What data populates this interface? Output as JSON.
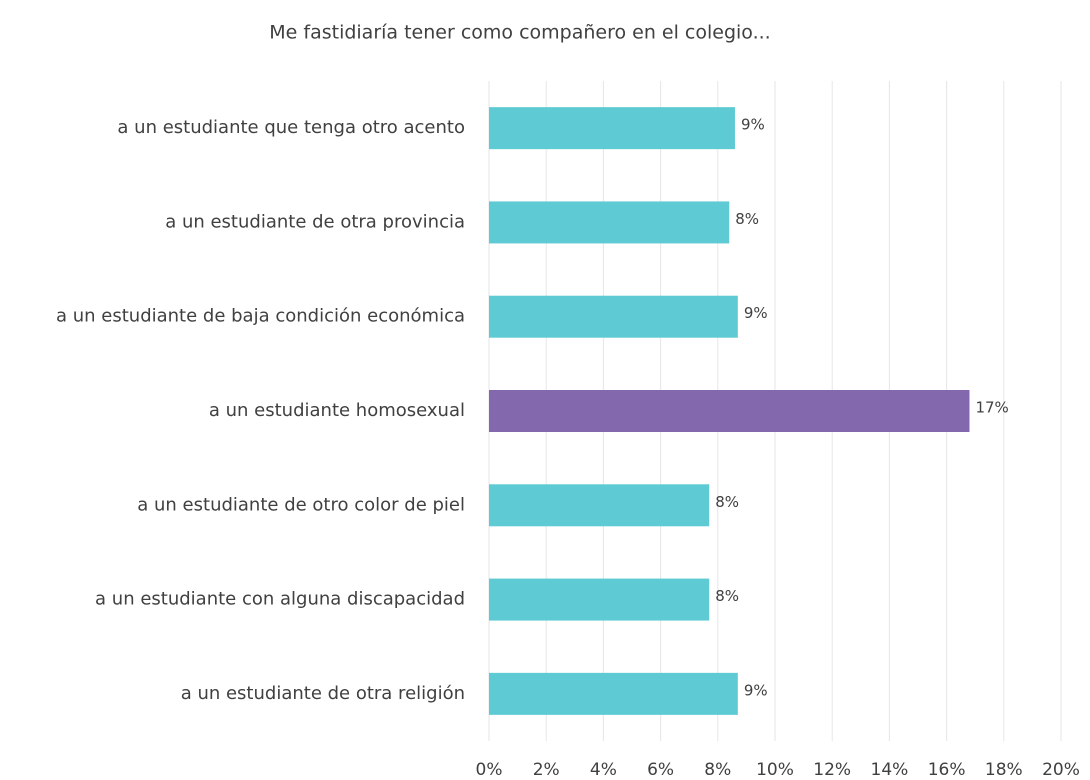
{
  "chart_data": {
    "type": "hbar",
    "title": "Me  fastidiaría tener como compañero en el colegio...",
    "categories": [
      "a un estudiante que tenga otro acento",
      "a un estudiante de otra provincia",
      "a un estudiante de baja condición económica",
      "a un estudiante homosexual",
      "a un estudiante de otro color de piel",
      "a un estudiante con alguna discapacidad",
      "a un estudiante de otra religión"
    ],
    "values": [
      8.6,
      8.4,
      8.7,
      16.8,
      7.7,
      7.7,
      8.7
    ],
    "value_labels": [
      "9%",
      "8%",
      "9%",
      "17%",
      "8%",
      "8%",
      "9%"
    ],
    "colors": [
      "#5ecad4",
      "#5ecad4",
      "#5ecad4",
      "#8368ad",
      "#5ecad4",
      "#5ecad4",
      "#5ecad4"
    ],
    "xlim": [
      0,
      20
    ],
    "xticks": [
      {
        "value": 0,
        "label": "0%"
      },
      {
        "value": 2,
        "label": "2%"
      },
      {
        "value": 4,
        "label": "4%"
      },
      {
        "value": 6,
        "label": "6%"
      },
      {
        "value": 8,
        "label": "8%"
      },
      {
        "value": 10,
        "label": "10%"
      },
      {
        "value": 12,
        "label": "12%"
      },
      {
        "value": 14,
        "label": "14%"
      },
      {
        "value": 16,
        "label": "16%"
      },
      {
        "value": 18,
        "label": "18%"
      },
      {
        "value": 20,
        "label": "20%"
      }
    ],
    "grid": true
  }
}
